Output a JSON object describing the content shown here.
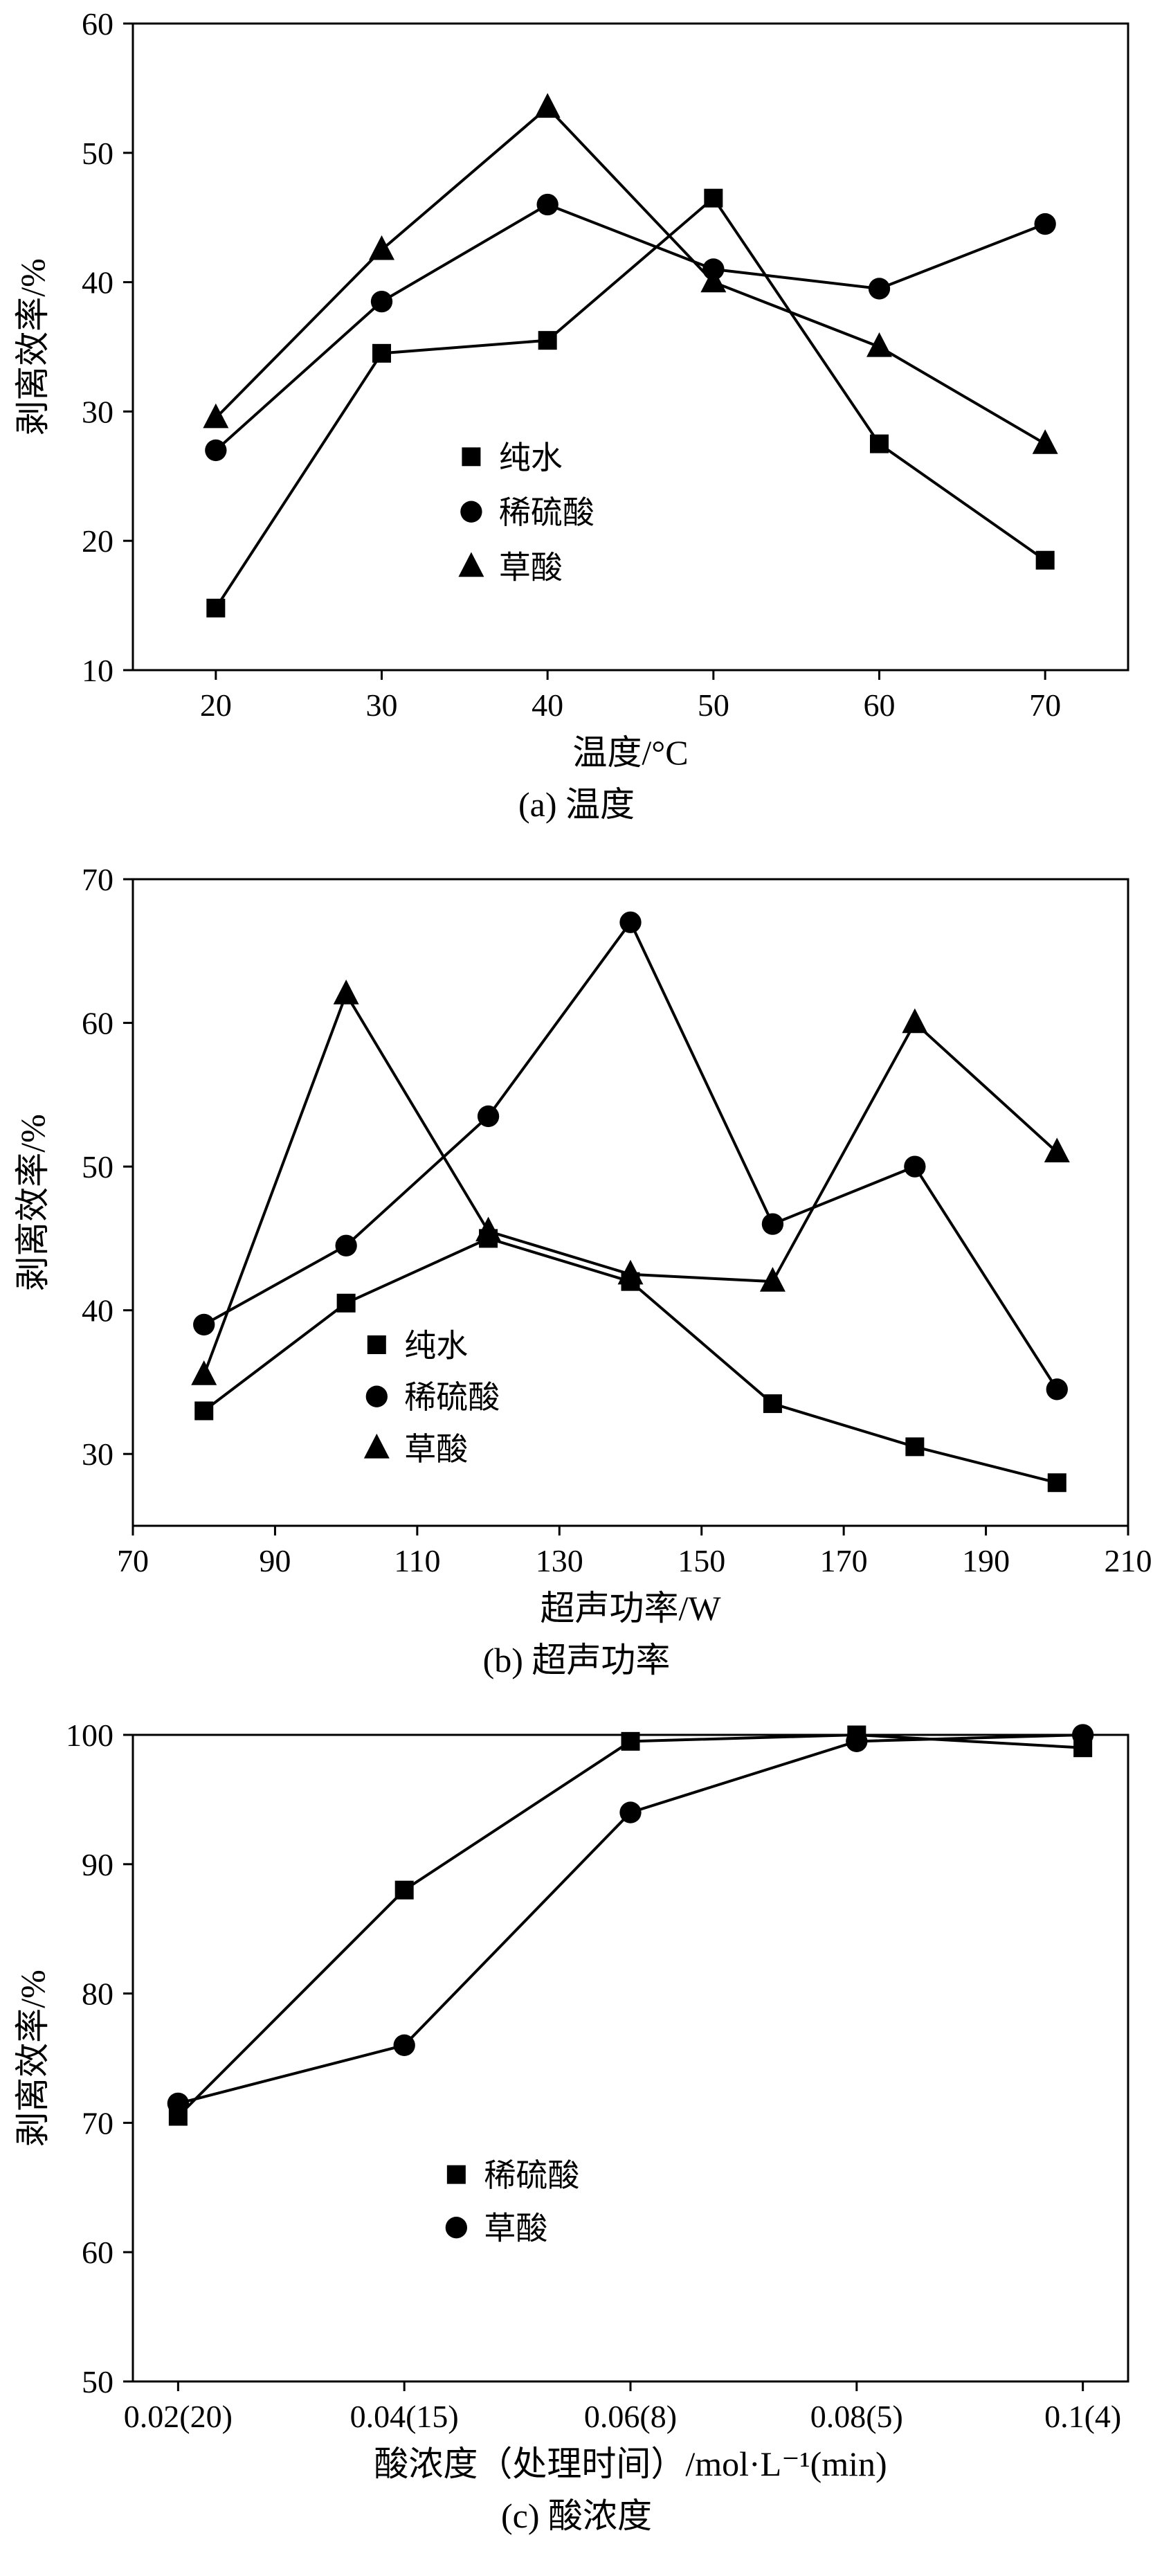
{
  "figure": {
    "background": "#ffffff",
    "ink_color": "#000000"
  },
  "chart_data": [
    {
      "type": "line",
      "caption": "(a) 温度",
      "xlabel": "温度/°C",
      "ylabel": "剥离效率/%",
      "xlim": [
        15,
        75
      ],
      "ylim": [
        10,
        60
      ],
      "x_ticks": [
        20,
        30,
        40,
        50,
        60,
        70
      ],
      "y_ticks": [
        10,
        20,
        30,
        40,
        50,
        60
      ],
      "grid": false,
      "legend": {
        "pos": {
          "x": 0.34,
          "y": 0.67
        },
        "row_gap": 0.085,
        "items": [
          {
            "label": "纯水",
            "marker": "square"
          },
          {
            "label": "稀硫酸",
            "marker": "circle"
          },
          {
            "label": "草酸",
            "marker": "triangle"
          }
        ]
      },
      "series": [
        {
          "name": "纯水",
          "marker": "square",
          "x": [
            20,
            30,
            40,
            50,
            60,
            70
          ],
          "y": [
            14.8,
            34.5,
            35.5,
            46.5,
            27.5,
            18.5
          ]
        },
        {
          "name": "稀硫酸",
          "marker": "circle",
          "x": [
            20,
            30,
            40,
            50,
            60,
            70
          ],
          "y": [
            27,
            38.5,
            46,
            41,
            39.5,
            44.5
          ]
        },
        {
          "name": "草酸",
          "marker": "triangle",
          "x": [
            20,
            30,
            40,
            50,
            60,
            70
          ],
          "y": [
            29.5,
            42.5,
            53.5,
            40,
            35,
            27.5
          ]
        }
      ]
    },
    {
      "type": "line",
      "caption": "(b) 超声功率",
      "xlabel": "超声功率/W",
      "ylabel": "剥离效率/%",
      "xlim": [
        70,
        210
      ],
      "ylim": [
        25,
        70
      ],
      "x_ticks": [
        70,
        90,
        110,
        130,
        150,
        170,
        190,
        210
      ],
      "y_ticks": [
        30,
        40,
        50,
        60,
        70
      ],
      "grid": false,
      "legend": {
        "pos": {
          "x": 0.245,
          "y": 0.72
        },
        "row_gap": 0.08,
        "items": [
          {
            "label": "纯水",
            "marker": "square"
          },
          {
            "label": "稀硫酸",
            "marker": "circle"
          },
          {
            "label": "草酸",
            "marker": "triangle"
          }
        ]
      },
      "series": [
        {
          "name": "纯水",
          "marker": "square",
          "x": [
            80,
            100,
            120,
            140,
            160,
            180,
            200
          ],
          "y": [
            33,
            40.5,
            45,
            42,
            33.5,
            30.5,
            28
          ]
        },
        {
          "name": "稀硫酸",
          "marker": "circle",
          "x": [
            80,
            100,
            120,
            140,
            160,
            180,
            200
          ],
          "y": [
            39,
            44.5,
            53.5,
            67,
            46,
            50,
            34.5
          ]
        },
        {
          "name": "草酸",
          "marker": "triangle",
          "x": [
            80,
            100,
            120,
            140,
            160,
            180,
            200
          ],
          "y": [
            35.5,
            62,
            45.5,
            42.5,
            42,
            60,
            51
          ]
        }
      ]
    },
    {
      "type": "line",
      "caption": "(c) 酸浓度",
      "xlabel": "酸浓度（处理时间）/mol·L⁻¹(min)",
      "ylabel": "剥离效率/%",
      "xlim": [
        -0.2,
        4.2
      ],
      "ylim": [
        50,
        100
      ],
      "x_ticks": [
        0,
        1,
        2,
        3,
        4
      ],
      "x_tick_labels": [
        "0.02(20)",
        "0.04(15)",
        "0.06(8)",
        "0.08(5)",
        "0.1(4)"
      ],
      "categories": [
        "0.02(20)",
        "0.04(15)",
        "0.06(8)",
        "0.08(5)",
        "0.1(4)"
      ],
      "y_ticks": [
        50,
        60,
        70,
        80,
        90,
        100
      ],
      "grid": false,
      "legend": {
        "pos": {
          "x": 0.325,
          "y": 0.68
        },
        "row_gap": 0.082,
        "items": [
          {
            "label": "稀硫酸",
            "marker": "square"
          },
          {
            "label": "草酸",
            "marker": "circle"
          }
        ]
      },
      "series": [
        {
          "name": "稀硫酸",
          "marker": "square",
          "x": [
            0,
            1,
            2,
            3,
            4
          ],
          "y": [
            70.5,
            88,
            99.5,
            100,
            99
          ]
        },
        {
          "name": "草酸",
          "marker": "circle",
          "x": [
            0,
            1,
            2,
            3,
            4
          ],
          "y": [
            71.5,
            76,
            94,
            99.5,
            100
          ]
        }
      ]
    }
  ]
}
